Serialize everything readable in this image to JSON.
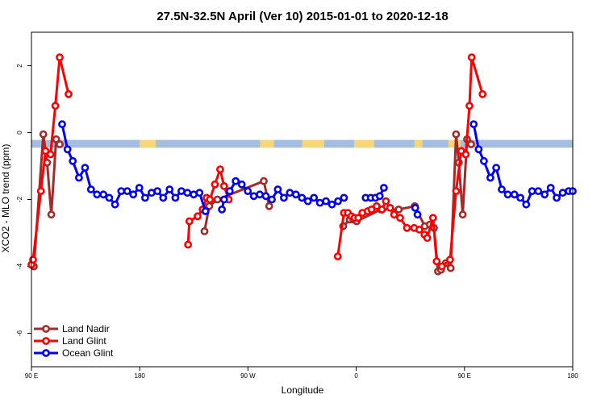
{
  "chart_data": {
    "type": "line",
    "title": "27.5N-32.5N April (Ver 10)   2015-01-01 to 2020-12-18",
    "xlabel": "Longitude",
    "ylabel": "XCO2 - MLO trend (ppm)",
    "xlim": [
      -90,
      180
    ],
    "ylim": [
      -7,
      3
    ],
    "x_ticks": [
      {
        "value": -90,
        "label": "90 E"
      },
      {
        "value": -36,
        "label": "180"
      },
      {
        "value": 18,
        "label": "90 W"
      },
      {
        "value": 72,
        "label": "0"
      },
      {
        "value": 126,
        "label": "90 E"
      },
      {
        "value": 180,
        "label": "180"
      }
    ],
    "y_ticks": [
      {
        "value": -6,
        "label": "-6"
      },
      {
        "value": -4,
        "label": "-4"
      },
      {
        "value": -2,
        "label": "-2"
      },
      {
        "value": 0,
        "label": "0"
      },
      {
        "value": 2,
        "label": "2"
      }
    ],
    "land_mask_band": {
      "y_top": -0.22,
      "y_bottom": -0.45,
      "land_color": "#f5d77a",
      "ocean_color": "#a4bde0"
    },
    "legend_position": "bottom-left",
    "series": [
      {
        "name": "Land Nadir",
        "color": "#a52a2a",
        "points": [
          [
            -88.8,
            -4.0
          ],
          [
            -84.1,
            -0.05
          ],
          [
            -82.2,
            -0.9
          ],
          [
            -80.1,
            -2.45
          ],
          [
            -77.7,
            -0.2
          ],
          [
            -75.9,
            -0.35
          ],
          null,
          [
            -3.7,
            -2.95
          ],
          [
            -1.3,
            -2.2
          ],
          [
            2.8,
            -2.0
          ],
          [
            25.9,
            -1.45
          ],
          [
            28.6,
            -2.2
          ],
          null,
          [
            65.5,
            -2.8
          ],
          [
            68.8,
            -2.6
          ],
          [
            70.6,
            -2.6
          ],
          [
            72.2,
            -2.65
          ],
          [
            84.3,
            -2.3
          ],
          [
            93.2,
            -2.3
          ],
          [
            101.2,
            -2.2
          ],
          [
            106.2,
            -2.8
          ],
          [
            108.7,
            -2.75
          ],
          [
            110.8,
            -2.85
          ],
          [
            112.8,
            -4.15
          ],
          [
            114.3,
            -4.1
          ],
          [
            116.7,
            -3.9
          ],
          [
            119.1,
            -4.05
          ],
          [
            121.8,
            -0.05
          ],
          [
            123.2,
            -0.9
          ],
          [
            125.1,
            -2.45
          ],
          [
            127.3,
            -0.2
          ],
          [
            129.3,
            -0.35
          ]
        ]
      },
      {
        "name": "Land Glint",
        "color": "#ff0000",
        "points": [
          [
            -90.0,
            -3.95
          ],
          [
            -89.2,
            -3.8
          ],
          [
            -85.3,
            -1.75
          ],
          [
            -83.0,
            -0.55
          ],
          [
            -80.5,
            -0.65
          ],
          [
            -78.1,
            0.8
          ],
          [
            -75.9,
            2.25
          ],
          [
            -71.5,
            1.15
          ],
          null,
          [
            -11.9,
            -3.35
          ],
          [
            -11.2,
            -2.65
          ],
          [
            -7.1,
            -2.5
          ],
          [
            -4.6,
            -2.3
          ],
          [
            -2.6,
            -1.95
          ],
          [
            -1.0,
            -2.0
          ],
          [
            1.5,
            -1.55
          ],
          [
            4.1,
            -1.1
          ],
          [
            6.1,
            -1.6
          ],
          [
            8.4,
            -2.0
          ],
          null,
          [
            62.8,
            -3.7
          ],
          [
            65.9,
            -2.4
          ],
          [
            67.8,
            -2.4
          ],
          [
            69.6,
            -2.5
          ],
          [
            71.1,
            -2.55
          ],
          [
            73.0,
            -2.55
          ],
          [
            75.0,
            -2.4
          ],
          [
            77.7,
            -2.35
          ],
          [
            79.6,
            -2.3
          ],
          [
            82.2,
            -2.2
          ],
          [
            84.8,
            -2.3
          ],
          [
            86.8,
            -2.05
          ],
          [
            88.9,
            -2.25
          ],
          [
            90.9,
            -2.45
          ],
          [
            93.9,
            -2.55
          ],
          [
            97.3,
            -2.85
          ],
          [
            100.9,
            -2.85
          ],
          [
            103.5,
            -2.9
          ],
          [
            106.1,
            -3.05
          ],
          [
            107.4,
            -3.15
          ],
          [
            110.3,
            -2.55
          ],
          [
            112.1,
            -3.85
          ],
          [
            114.7,
            -4.0
          ],
          [
            118.8,
            -3.8
          ],
          [
            121.8,
            -1.75
          ],
          [
            124.4,
            -0.55
          ],
          [
            126.6,
            -0.65
          ],
          [
            128.5,
            0.8
          ],
          [
            129.6,
            2.25
          ],
          [
            135.0,
            1.15
          ]
        ]
      },
      {
        "name": "Ocean Glint",
        "color": "#0000ff",
        "points": [
          [
            -74.7,
            0.25
          ],
          [
            -72.0,
            -0.5
          ],
          [
            -69.4,
            -0.85
          ],
          [
            -66.3,
            -1.35
          ],
          [
            -63.3,
            -1.05
          ],
          [
            -60.3,
            -1.7
          ],
          [
            -57.3,
            -1.85
          ],
          [
            -54.1,
            -1.85
          ],
          [
            -51.2,
            -1.95
          ],
          [
            -48.3,
            -2.15
          ],
          [
            -45.2,
            -1.75
          ],
          [
            -42.2,
            -1.75
          ],
          [
            -39.2,
            -1.85
          ],
          [
            -36.2,
            -1.65
          ],
          [
            -33.3,
            -1.95
          ],
          [
            -30.1,
            -1.8
          ],
          [
            -27.2,
            -1.75
          ],
          [
            -24.3,
            -1.95
          ],
          [
            -21.1,
            -1.7
          ],
          [
            -18.2,
            -1.95
          ],
          [
            -15.2,
            -1.75
          ],
          [
            -12.2,
            -1.8
          ],
          [
            -9.1,
            -1.85
          ],
          [
            -6.2,
            -1.8
          ],
          [
            -3.2,
            -2.35
          ],
          null,
          [
            5.0,
            -2.3
          ],
          [
            6.1,
            -2.0
          ],
          [
            8.9,
            -1.75
          ],
          [
            11.9,
            -1.45
          ],
          [
            14.9,
            -1.55
          ],
          [
            17.9,
            -1.75
          ],
          [
            20.9,
            -1.9
          ],
          [
            23.9,
            -1.85
          ],
          [
            26.9,
            -1.9
          ],
          [
            29.9,
            -2.0
          ],
          [
            32.9,
            -1.7
          ],
          [
            35.9,
            -1.95
          ],
          [
            38.9,
            -1.8
          ],
          [
            41.9,
            -1.85
          ],
          [
            44.9,
            -1.95
          ],
          [
            47.9,
            -2.05
          ],
          [
            50.9,
            -1.95
          ],
          [
            53.9,
            -2.1
          ],
          [
            56.9,
            -2.05
          ],
          [
            59.9,
            -2.15
          ],
          [
            62.9,
            -2.05
          ],
          [
            65.9,
            -1.95
          ],
          null,
          [
            76.7,
            -1.95
          ],
          [
            79.3,
            -1.95
          ],
          [
            81.6,
            -1.95
          ],
          [
            83.7,
            -1.9
          ],
          [
            85.8,
            -1.65
          ],
          null,
          [
            101.4,
            -2.25
          ],
          [
            102.6,
            -2.45
          ],
          null,
          [
            130.6,
            0.25
          ],
          [
            133.1,
            -0.5
          ],
          [
            135.7,
            -0.85
          ],
          [
            138.9,
            -1.35
          ],
          [
            141.8,
            -1.05
          ],
          [
            144.6,
            -1.7
          ],
          [
            147.6,
            -1.85
          ],
          [
            150.9,
            -1.85
          ],
          [
            153.9,
            -1.95
          ],
          [
            156.8,
            -2.15
          ],
          [
            159.7,
            -1.75
          ],
          [
            162.8,
            -1.75
          ],
          [
            166.0,
            -1.85
          ],
          [
            169.0,
            -1.65
          ],
          [
            172.0,
            -1.95
          ],
          [
            175.0,
            -1.8
          ],
          [
            178.0,
            -1.75
          ],
          [
            180.0,
            -1.75
          ]
        ]
      }
    ]
  }
}
